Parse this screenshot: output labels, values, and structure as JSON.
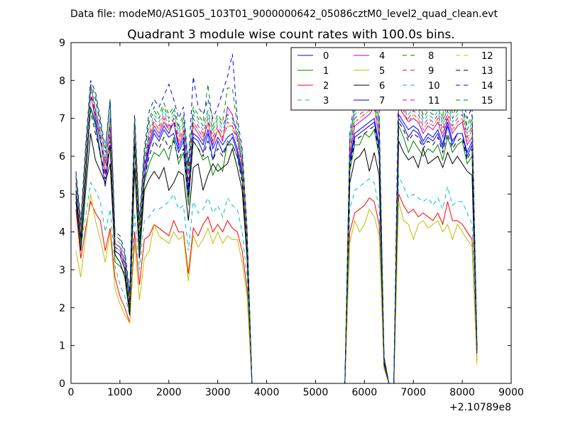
{
  "header": {
    "data_file": "Data file: modeM0/AS1G05_103T01_9000000642_05086cztM0_level2_quad_clean.evt"
  },
  "chart_data": {
    "type": "line",
    "title": "Quadrant 3 module wise count rates with 100.0s bins.",
    "xlabel": "",
    "ylabel": "",
    "x_offset_label": "+2.10789e8",
    "xlim": [
      0,
      9000
    ],
    "ylim": [
      0,
      9
    ],
    "x_ticks": [
      "0",
      "1000",
      "2000",
      "3000",
      "4000",
      "5000",
      "6000",
      "7000",
      "8000",
      "9000"
    ],
    "y_ticks": [
      "0",
      "1",
      "2",
      "3",
      "4",
      "5",
      "6",
      "7",
      "8",
      "9"
    ],
    "grid": false,
    "legend_position": "top-right",
    "legend_columns": 4,
    "x": [
      100,
      200,
      300,
      400,
      500,
      600,
      700,
      800,
      900,
      1000,
      1100,
      1200,
      1300,
      1400,
      1500,
      1600,
      1700,
      1800,
      1900,
      2000,
      2100,
      2200,
      2300,
      2400,
      2500,
      2600,
      2700,
      2800,
      2900,
      3000,
      3100,
      3200,
      3300,
      3400,
      3500,
      3600,
      3700,
      5600,
      5700,
      5800,
      5900,
      6000,
      6100,
      6200,
      6300,
      6400,
      6500,
      6600,
      6700,
      6800,
      6900,
      7000,
      7100,
      7200,
      7300,
      7400,
      7500,
      7600,
      7700,
      7800,
      7900,
      8000,
      8100,
      8200,
      8300
    ],
    "series": [
      {
        "name": "0",
        "color": "#0000ff",
        "dash": "solid",
        "values": [
          5.0,
          3.9,
          5.6,
          7.3,
          6.9,
          6.1,
          5.2,
          6.3,
          3.5,
          3.4,
          3.0,
          2.1,
          6.5,
          3.8,
          5.4,
          6.2,
          6.6,
          6.4,
          6.7,
          6.5,
          6.6,
          6.1,
          6.4,
          5.0,
          6.5,
          6.4,
          6.1,
          6.6,
          5.9,
          6.4,
          6.1,
          6.3,
          6.5,
          6.1,
          5.5,
          3.6,
          0.0,
          0.0,
          5.8,
          6.5,
          6.6,
          6.7,
          6.8,
          6.9,
          6.2,
          0.6,
          0.0,
          0.0,
          7.0,
          6.8,
          6.5,
          6.7,
          6.6,
          6.3,
          6.5,
          6.4,
          6.6,
          6.2,
          6.8,
          6.3,
          6.6,
          6.6,
          6.0,
          6.3,
          0.9
        ]
      },
      {
        "name": "1",
        "color": "#008000",
        "dash": "solid",
        "values": [
          4.9,
          3.7,
          5.4,
          7.3,
          6.8,
          6.0,
          5.6,
          6.2,
          3.2,
          3.1,
          2.9,
          1.9,
          6.3,
          3.5,
          5.3,
          5.8,
          6.1,
          6.0,
          6.2,
          5.9,
          6.5,
          5.8,
          6.1,
          4.7,
          6.4,
          6.2,
          5.9,
          6.0,
          5.5,
          5.8,
          5.6,
          6.4,
          6.3,
          6.0,
          5.4,
          3.5,
          0.0,
          0.0,
          5.6,
          6.3,
          6.3,
          6.6,
          6.5,
          6.7,
          6.0,
          0.6,
          0.0,
          0.0,
          6.8,
          6.5,
          6.1,
          6.4,
          6.2,
          6.0,
          6.2,
          6.1,
          6.3,
          5.9,
          6.5,
          6.1,
          6.3,
          6.4,
          5.8,
          6.0,
          0.9
        ]
      },
      {
        "name": "2",
        "color": "#ff0000",
        "dash": "solid",
        "values": [
          4.6,
          3.3,
          4.1,
          4.8,
          4.5,
          4.3,
          3.5,
          4.1,
          2.8,
          2.3,
          2.0,
          1.6,
          4.0,
          2.6,
          3.8,
          3.9,
          4.2,
          4.1,
          4.0,
          3.9,
          4.3,
          4.0,
          4.0,
          2.9,
          4.1,
          3.9,
          4.2,
          4.4,
          4.0,
          4.2,
          4.0,
          4.3,
          4.1,
          4.0,
          3.5,
          2.5,
          0.0,
          0.0,
          4.0,
          4.5,
          4.6,
          4.7,
          4.9,
          4.8,
          4.2,
          0.4,
          0.0,
          0.0,
          5.0,
          4.7,
          4.5,
          4.6,
          4.4,
          4.5,
          4.4,
          4.3,
          4.5,
          4.2,
          4.8,
          4.3,
          4.3,
          4.2,
          4.0,
          3.8,
          0.6
        ]
      },
      {
        "name": "3",
        "color": "#00bfbf",
        "dash": "dashed",
        "values": [
          5.0,
          3.6,
          4.4,
          5.3,
          5.1,
          4.8,
          4.0,
          4.6,
          3.1,
          2.6,
          2.3,
          1.8,
          4.5,
          3.0,
          4.3,
          4.4,
          4.6,
          4.6,
          4.7,
          4.8,
          5.0,
          4.6,
          4.7,
          3.5,
          4.8,
          4.5,
          4.6,
          4.9,
          4.5,
          4.7,
          4.4,
          4.9,
          4.7,
          4.6,
          4.0,
          2.8,
          0.0,
          0.0,
          4.6,
          5.1,
          5.2,
          5.3,
          5.4,
          5.3,
          4.6,
          0.5,
          0.0,
          0.0,
          5.5,
          5.2,
          4.9,
          5.0,
          4.9,
          4.8,
          4.9,
          4.7,
          4.9,
          4.6,
          5.2,
          4.7,
          4.8,
          4.8,
          4.5,
          4.2,
          0.7
        ]
      },
      {
        "name": "4",
        "color": "#bf00bf",
        "dash": "solid",
        "values": [
          5.2,
          4.1,
          5.8,
          7.9,
          7.2,
          6.5,
          5.5,
          6.6,
          3.7,
          3.6,
          3.2,
          2.2,
          6.8,
          4.0,
          5.7,
          6.4,
          6.8,
          6.6,
          6.9,
          6.7,
          6.9,
          6.3,
          6.6,
          5.2,
          6.8,
          6.6,
          6.4,
          6.9,
          6.3,
          6.7,
          6.4,
          7.3,
          7.1,
          6.5,
          5.8,
          3.8,
          0.0,
          0.0,
          6.0,
          6.8,
          6.9,
          7.0,
          7.1,
          7.3,
          6.5,
          0.6,
          0.0,
          0.0,
          7.3,
          7.1,
          6.9,
          7.0,
          6.9,
          6.6,
          6.8,
          6.7,
          6.9,
          6.5,
          7.0,
          6.6,
          6.8,
          6.9,
          6.3,
          6.5,
          0.9
        ]
      },
      {
        "name": "5",
        "color": "#bfbf00",
        "dash": "solid",
        "values": [
          3.5,
          2.8,
          3.9,
          5.0,
          4.3,
          3.8,
          3.2,
          4.0,
          2.5,
          2.1,
          1.8,
          1.6,
          3.7,
          2.2,
          3.3,
          3.5,
          4.2,
          3.9,
          3.8,
          3.7,
          4.0,
          3.8,
          3.9,
          2.7,
          3.9,
          3.6,
          3.8,
          4.1,
          3.7,
          4.0,
          3.7,
          3.9,
          3.8,
          3.8,
          3.2,
          2.3,
          0.0,
          0.0,
          3.7,
          4.3,
          4.0,
          4.2,
          4.6,
          4.4,
          3.9,
          0.4,
          0.0,
          0.0,
          4.8,
          4.3,
          4.2,
          3.8,
          4.2,
          4.3,
          4.1,
          4.2,
          4.3,
          4.0,
          4.2,
          3.8,
          4.2,
          4.0,
          3.8,
          3.6,
          0.5
        ]
      },
      {
        "name": "6",
        "color": "#000000",
        "dash": "solid",
        "values": [
          4.8,
          3.5,
          5.1,
          6.6,
          5.9,
          5.6,
          5.3,
          5.8,
          3.4,
          3.2,
          2.8,
          1.8,
          5.7,
          3.3,
          5.1,
          5.4,
          5.6,
          5.4,
          5.7,
          5.1,
          5.3,
          5.6,
          5.5,
          4.3,
          5.7,
          5.8,
          5.1,
          5.5,
          5.8,
          5.6,
          5.7,
          5.8,
          6.2,
          5.7,
          5.1,
          3.3,
          0.0,
          0.0,
          5.3,
          5.9,
          6.0,
          6.2,
          5.6,
          6.1,
          5.5,
          0.5,
          0.0,
          0.0,
          6.4,
          6.1,
          5.9,
          6.0,
          5.7,
          6.2,
          5.8,
          5.9,
          6.0,
          5.7,
          6.1,
          5.8,
          6.0,
          5.8,
          5.6,
          5.5,
          0.8
        ]
      },
      {
        "name": "7",
        "color": "#0000ff",
        "dash": "solid",
        "values": [
          5.1,
          4.0,
          5.7,
          7.6,
          7.0,
          6.4,
          5.8,
          6.8,
          3.6,
          3.5,
          3.1,
          2.1,
          6.7,
          3.9,
          5.6,
          6.3,
          6.7,
          6.5,
          6.8,
          6.6,
          6.9,
          6.2,
          6.5,
          5.1,
          6.6,
          6.5,
          6.3,
          6.7,
          6.2,
          6.5,
          6.3,
          6.5,
          6.6,
          6.2,
          5.6,
          3.7,
          0.0,
          0.0,
          5.9,
          6.6,
          6.7,
          6.8,
          6.9,
          7.0,
          6.3,
          0.6,
          0.0,
          0.0,
          7.1,
          6.9,
          6.7,
          6.8,
          6.7,
          6.4,
          6.6,
          6.5,
          6.7,
          6.3,
          6.9,
          6.4,
          6.6,
          6.6,
          6.1,
          6.4,
          0.9
        ]
      },
      {
        "name": "8",
        "color": "#008000",
        "dash": "dashed",
        "values": [
          5.5,
          4.2,
          6.1,
          7.8,
          7.5,
          6.8,
          6.1,
          7.4,
          3.9,
          3.8,
          3.4,
          2.3,
          6.9,
          4.2,
          6.0,
          6.9,
          7.2,
          7.0,
          7.3,
          7.0,
          7.2,
          6.7,
          7.0,
          5.6,
          7.2,
          7.0,
          6.8,
          7.2,
          6.7,
          7.0,
          6.8,
          7.1,
          7.0,
          6.7,
          6.0,
          4.0,
          0.0,
          0.0,
          6.4,
          7.2,
          7.3,
          7.4,
          7.5,
          7.6,
          6.9,
          0.7,
          0.0,
          0.0,
          7.7,
          7.5,
          7.2,
          7.4,
          7.3,
          7.0,
          7.2,
          7.1,
          7.3,
          6.9,
          7.4,
          7.0,
          7.2,
          7.3,
          6.7,
          7.0,
          1.0
        ]
      },
      {
        "name": "9",
        "color": "#ff0000",
        "dash": "dashed",
        "values": [
          5.3,
          4.1,
          5.8,
          7.7,
          7.1,
          6.6,
          5.8,
          6.9,
          3.7,
          3.6,
          3.2,
          2.2,
          6.8,
          4.0,
          5.8,
          6.5,
          6.9,
          6.7,
          7.0,
          6.7,
          7.0,
          6.4,
          6.7,
          5.3,
          6.9,
          6.7,
          6.5,
          6.9,
          6.4,
          6.7,
          6.5,
          6.8,
          6.8,
          6.4,
          5.7,
          3.8,
          0.0,
          0.0,
          6.1,
          6.9,
          7.0,
          7.1,
          7.2,
          7.3,
          6.5,
          0.6,
          0.0,
          0.0,
          7.4,
          7.2,
          6.9,
          7.1,
          7.0,
          6.7,
          6.9,
          6.8,
          7.0,
          6.6,
          7.1,
          6.7,
          6.9,
          7.0,
          6.4,
          6.7,
          0.9
        ]
      },
      {
        "name": "10",
        "color": "#00bfbf",
        "dash": "dashed",
        "values": [
          5.4,
          4.2,
          6.0,
          7.8,
          7.3,
          6.7,
          5.9,
          7.1,
          3.8,
          3.7,
          3.3,
          2.3,
          6.9,
          4.1,
          5.9,
          6.7,
          7.1,
          6.9,
          7.2,
          6.9,
          7.1,
          6.6,
          6.9,
          5.5,
          7.1,
          6.9,
          6.7,
          7.1,
          6.6,
          6.9,
          6.7,
          7.0,
          6.9,
          6.6,
          5.9,
          3.9,
          0.0,
          0.0,
          6.3,
          7.1,
          7.2,
          7.3,
          7.4,
          7.5,
          6.8,
          0.7,
          0.0,
          0.0,
          7.6,
          7.4,
          7.1,
          7.3,
          7.2,
          6.9,
          7.1,
          7.0,
          7.2,
          6.8,
          7.3,
          6.9,
          7.1,
          7.2,
          6.6,
          6.9,
          1.0
        ]
      },
      {
        "name": "11",
        "color": "#bf00bf",
        "dash": "dashed",
        "values": [
          5.3,
          4.0,
          5.9,
          7.7,
          7.2,
          6.6,
          5.8,
          7.0,
          3.7,
          3.6,
          3.2,
          2.2,
          6.8,
          4.0,
          5.8,
          6.6,
          7.0,
          6.8,
          7.1,
          6.8,
          7.0,
          6.5,
          6.8,
          5.4,
          7.0,
          6.8,
          6.6,
          7.0,
          6.5,
          6.8,
          6.6,
          6.9,
          6.8,
          6.5,
          5.8,
          3.8,
          0.0,
          0.0,
          6.2,
          7.0,
          7.1,
          7.2,
          7.3,
          7.4,
          6.7,
          0.6,
          0.0,
          0.0,
          7.5,
          7.3,
          7.0,
          7.2,
          7.1,
          6.8,
          7.0,
          6.9,
          7.1,
          6.7,
          7.2,
          6.8,
          7.0,
          7.1,
          6.5,
          6.8,
          1.0
        ]
      },
      {
        "name": "12",
        "color": "#bfbf00",
        "dash": "dashed",
        "values": [
          5.2,
          4.0,
          5.8,
          7.6,
          7.1,
          6.5,
          5.7,
          6.9,
          3.6,
          3.5,
          3.1,
          2.1,
          6.7,
          3.9,
          5.7,
          6.5,
          6.9,
          6.7,
          7.0,
          6.7,
          6.9,
          6.4,
          6.7,
          5.3,
          6.9,
          6.7,
          6.5,
          6.9,
          6.4,
          6.7,
          6.5,
          6.8,
          6.7,
          6.4,
          5.7,
          3.7,
          0.0,
          0.0,
          6.1,
          6.9,
          7.0,
          7.1,
          7.2,
          7.3,
          6.6,
          0.6,
          0.0,
          0.0,
          7.4,
          7.2,
          6.9,
          7.1,
          7.0,
          6.7,
          6.9,
          6.8,
          7.0,
          6.6,
          7.1,
          6.7,
          6.9,
          7.0,
          6.4,
          6.7,
          0.9
        ]
      },
      {
        "name": "13",
        "color": "#000000",
        "dash": "dashed",
        "values": [
          5.0,
          3.8,
          5.5,
          7.2,
          6.6,
          6.1,
          5.4,
          6.4,
          3.5,
          3.4,
          3.0,
          2.0,
          6.3,
          3.7,
          5.4,
          6.0,
          6.4,
          6.2,
          6.5,
          6.2,
          6.4,
          5.9,
          6.2,
          4.9,
          6.4,
          6.2,
          6.0,
          6.4,
          5.9,
          6.2,
          6.0,
          6.3,
          6.3,
          6.0,
          5.3,
          3.5,
          0.0,
          0.0,
          5.7,
          6.4,
          6.5,
          6.6,
          6.7,
          6.8,
          6.1,
          0.6,
          0.0,
          0.0,
          6.9,
          6.7,
          6.4,
          6.6,
          6.5,
          6.2,
          6.4,
          6.3,
          6.5,
          6.1,
          6.6,
          6.2,
          6.4,
          6.5,
          5.9,
          6.2,
          0.9
        ]
      },
      {
        "name": "14",
        "color": "#0000ff",
        "dash": "dashed",
        "values": [
          5.6,
          4.3,
          6.3,
          8.0,
          7.7,
          7.0,
          6.2,
          7.5,
          4.0,
          3.9,
          3.5,
          2.4,
          7.1,
          4.3,
          6.2,
          7.2,
          7.5,
          7.3,
          7.6,
          7.9,
          7.5,
          7.0,
          7.3,
          5.8,
          8.1,
          7.3,
          7.1,
          7.5,
          7.0,
          7.3,
          7.7,
          8.1,
          8.7,
          7.0,
          6.2,
          4.1,
          0.0,
          0.0,
          6.6,
          7.5,
          7.6,
          7.7,
          7.8,
          7.9,
          7.2,
          0.7,
          0.0,
          0.0,
          8.4,
          7.8,
          7.5,
          7.7,
          7.6,
          7.3,
          7.5,
          7.4,
          7.6,
          7.2,
          7.7,
          7.3,
          7.5,
          7.6,
          7.0,
          7.3,
          1.0
        ]
      },
      {
        "name": "15",
        "color": "#008000",
        "dash": "dashed",
        "values": [
          5.5,
          4.2,
          6.2,
          7.9,
          7.6,
          6.9,
          6.1,
          7.5,
          3.9,
          3.8,
          3.4,
          2.3,
          7.0,
          4.2,
          6.1,
          7.0,
          7.3,
          7.1,
          7.4,
          7.1,
          7.3,
          6.8,
          7.1,
          5.7,
          7.3,
          7.1,
          6.9,
          7.9,
          6.8,
          7.1,
          6.9,
          7.8,
          7.8,
          6.8,
          6.1,
          4.0,
          0.0,
          0.0,
          6.5,
          7.3,
          7.4,
          7.5,
          7.6,
          7.7,
          7.0,
          0.7,
          0.0,
          0.0,
          7.8,
          7.6,
          7.3,
          7.5,
          7.4,
          7.1,
          7.3,
          7.2,
          7.4,
          7.0,
          8.5,
          7.1,
          7.3,
          7.4,
          6.8,
          7.1,
          1.0
        ]
      }
    ]
  }
}
